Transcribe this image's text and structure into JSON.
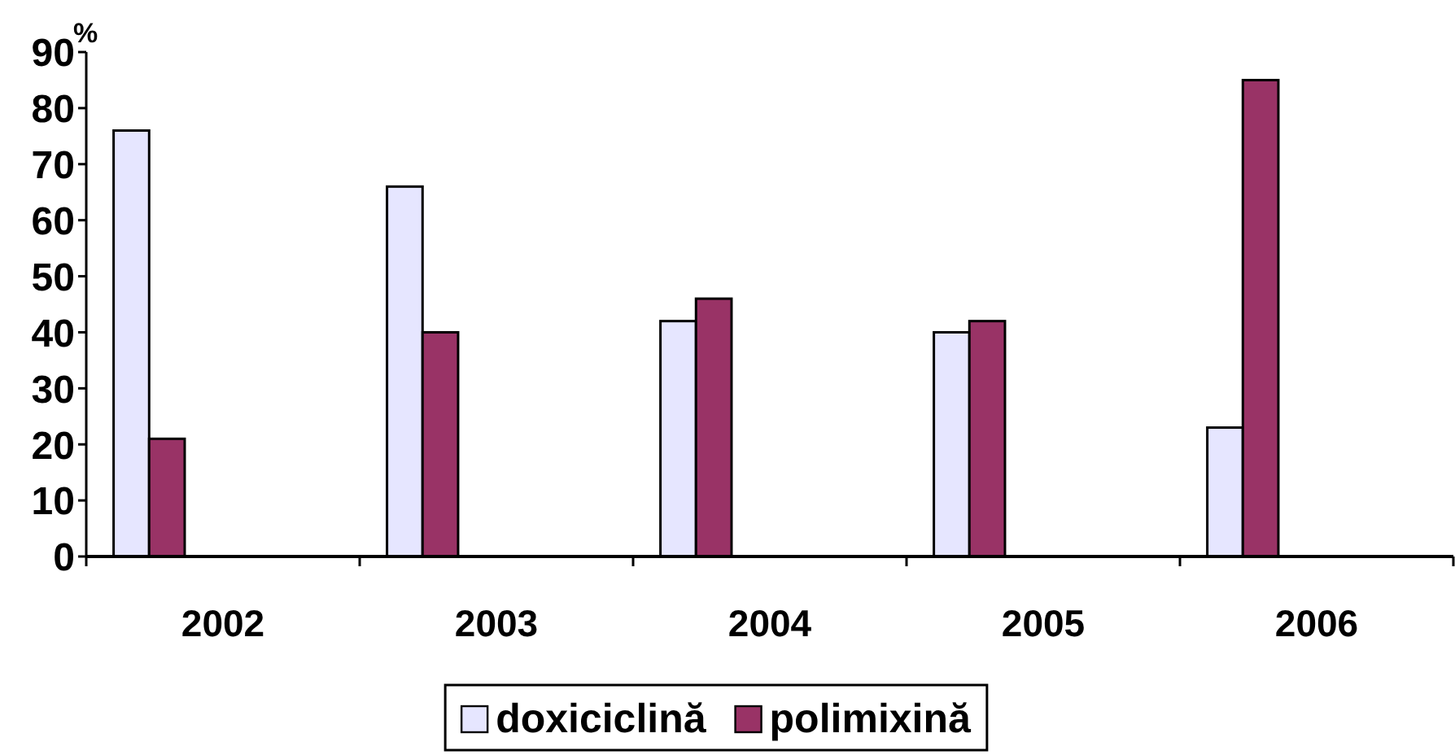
{
  "chart_data": {
    "type": "bar",
    "ylabel": "%",
    "categories": [
      "2002",
      "2003",
      "2004",
      "2005",
      "2006"
    ],
    "series": [
      {
        "name": "doxiciclină",
        "color": "#e6e6ff",
        "values": [
          76,
          66,
          42,
          40,
          23
        ]
      },
      {
        "name": "polimixină",
        "color": "#993366",
        "values": [
          21,
          40,
          46,
          42,
          85
        ]
      }
    ],
    "ylim": [
      0,
      90
    ],
    "yticks": [
      0,
      10,
      20,
      30,
      40,
      50,
      60,
      70,
      80,
      90
    ],
    "grid": false,
    "legend": "bottom"
  }
}
